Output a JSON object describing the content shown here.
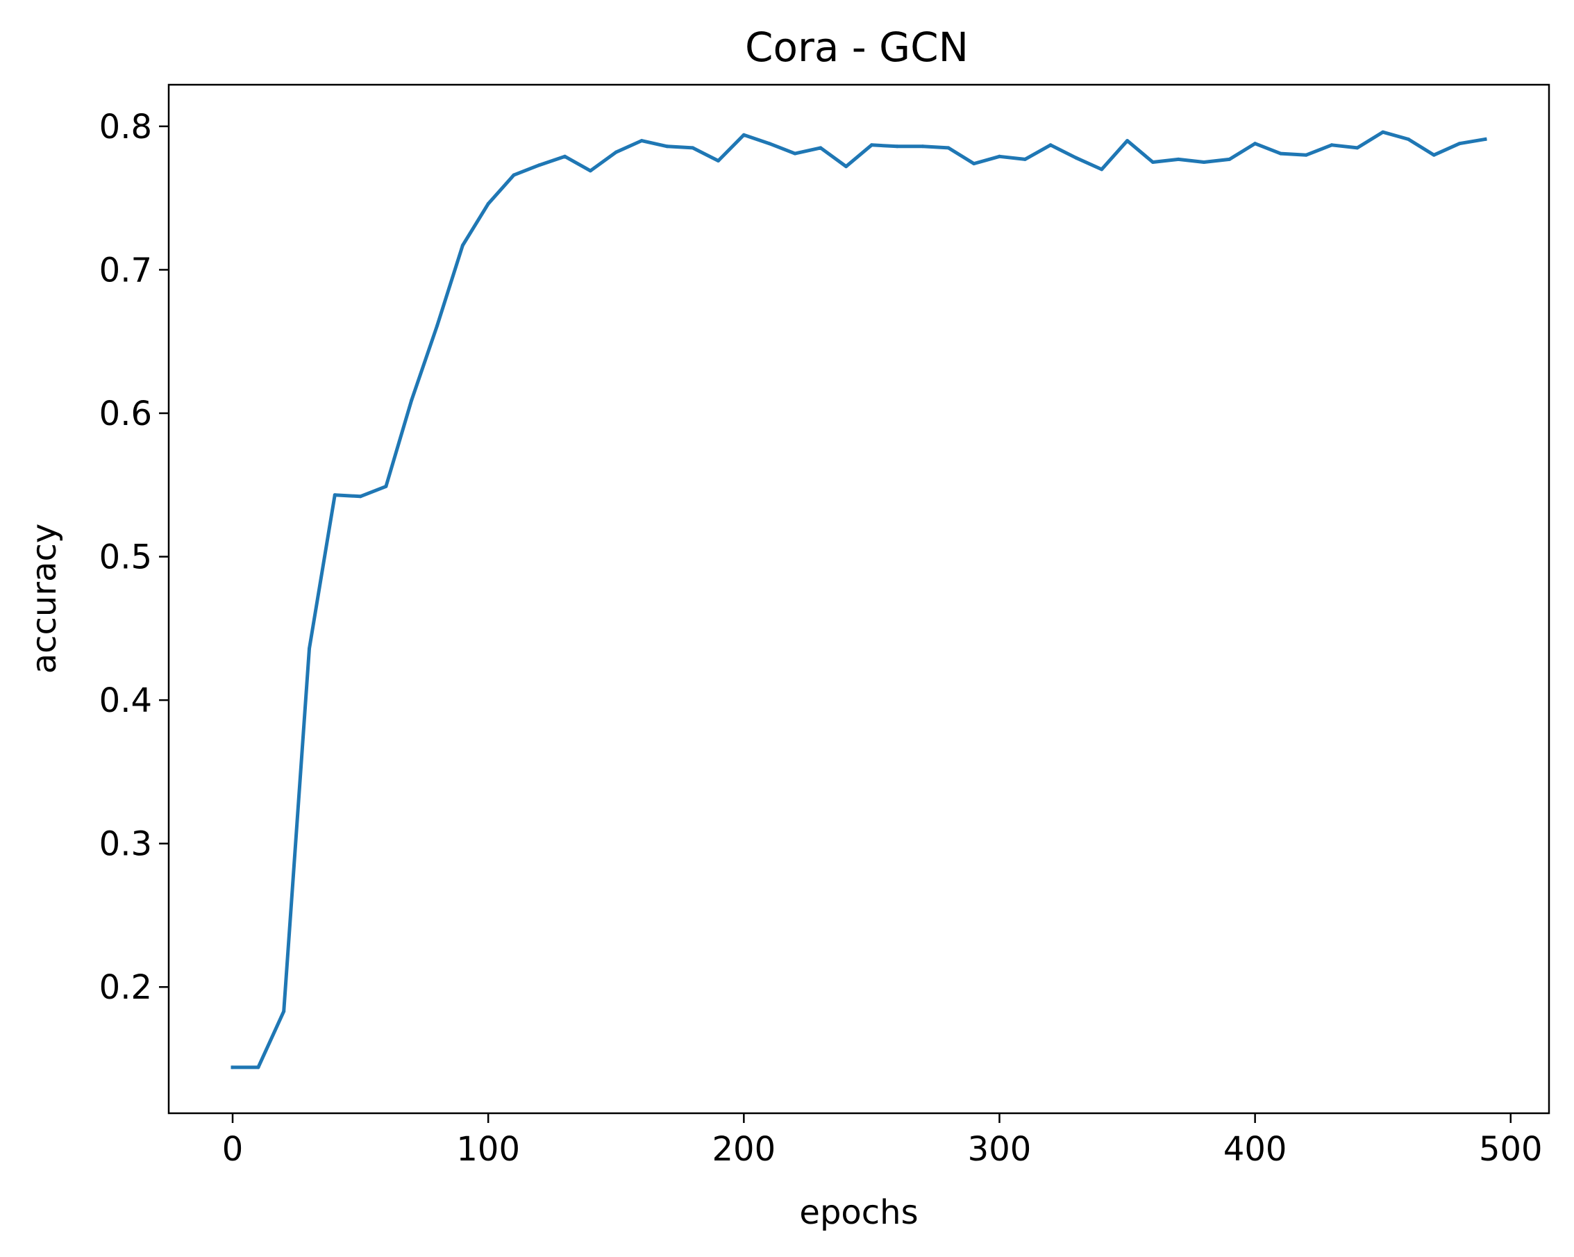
{
  "chart_data": {
    "type": "line",
    "title": "Cora - GCN",
    "xlabel": "epochs",
    "ylabel": "accuracy",
    "xlim": [
      -25,
      515
    ],
    "ylim": [
      0.112,
      0.829
    ],
    "xticks": [
      0,
      100,
      200,
      300,
      400,
      500
    ],
    "xtick_labels": [
      "0",
      "100",
      "200",
      "300",
      "400",
      "500"
    ],
    "yticks": [
      0.2,
      0.3,
      0.4,
      0.5,
      0.6,
      0.7,
      0.8
    ],
    "ytick_labels": [
      "0.2",
      "0.3",
      "0.4",
      "0.5",
      "0.6",
      "0.7",
      "0.8"
    ],
    "grid": false,
    "legend": "none",
    "series": [
      {
        "color": "#1f77b4",
        "x": [
          0,
          10,
          20,
          30,
          40,
          50,
          60,
          70,
          80,
          90,
          100,
          110,
          120,
          130,
          140,
          150,
          160,
          170,
          180,
          190,
          200,
          210,
          220,
          230,
          240,
          250,
          260,
          270,
          280,
          290,
          300,
          310,
          320,
          330,
          340,
          350,
          360,
          370,
          380,
          390,
          400,
          410,
          420,
          430,
          440,
          450,
          460,
          470,
          480,
          490
        ],
        "y": [
          0.144,
          0.144,
          0.183,
          0.436,
          0.543,
          0.542,
          0.549,
          0.609,
          0.661,
          0.717,
          0.746,
          0.766,
          0.773,
          0.779,
          0.769,
          0.782,
          0.79,
          0.786,
          0.785,
          0.776,
          0.794,
          0.788,
          0.781,
          0.785,
          0.772,
          0.787,
          0.786,
          0.786,
          0.785,
          0.774,
          0.779,
          0.777,
          0.787,
          0.778,
          0.77,
          0.79,
          0.775,
          0.777,
          0.775,
          0.777,
          0.788,
          0.781,
          0.78,
          0.787,
          0.785,
          0.796,
          0.791,
          0.78,
          0.788,
          0.791
        ]
      }
    ]
  }
}
